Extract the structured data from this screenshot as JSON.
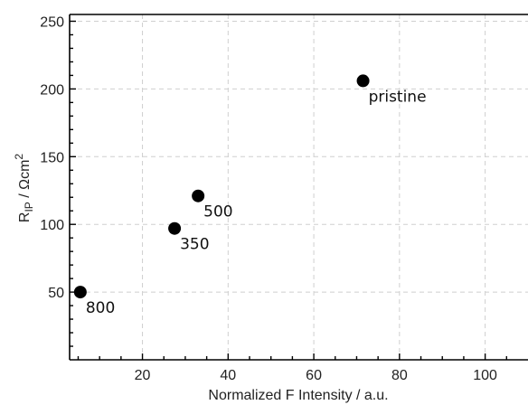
{
  "chart_data": {
    "type": "scatter",
    "title": "",
    "xlabel": "Normalized F Intensity / a.u.",
    "ylabel": {
      "main": "R",
      "sub": "IP",
      "unit": " / Ωcm",
      "sup": "2"
    },
    "xlim": [
      3,
      110
    ],
    "ylim": [
      0,
      255
    ],
    "xticks": [
      20,
      40,
      60,
      80,
      100
    ],
    "yticks": [
      50,
      100,
      150,
      200,
      250
    ],
    "grid": true,
    "marker_color": "#000000",
    "points": [
      {
        "x": 71.5,
        "y": 206,
        "label": "pristine"
      },
      {
        "x": 33,
        "y": 121,
        "label": "500"
      },
      {
        "x": 27.5,
        "y": 97,
        "label": "350"
      },
      {
        "x": 5.5,
        "y": 50,
        "label": "800"
      }
    ]
  }
}
